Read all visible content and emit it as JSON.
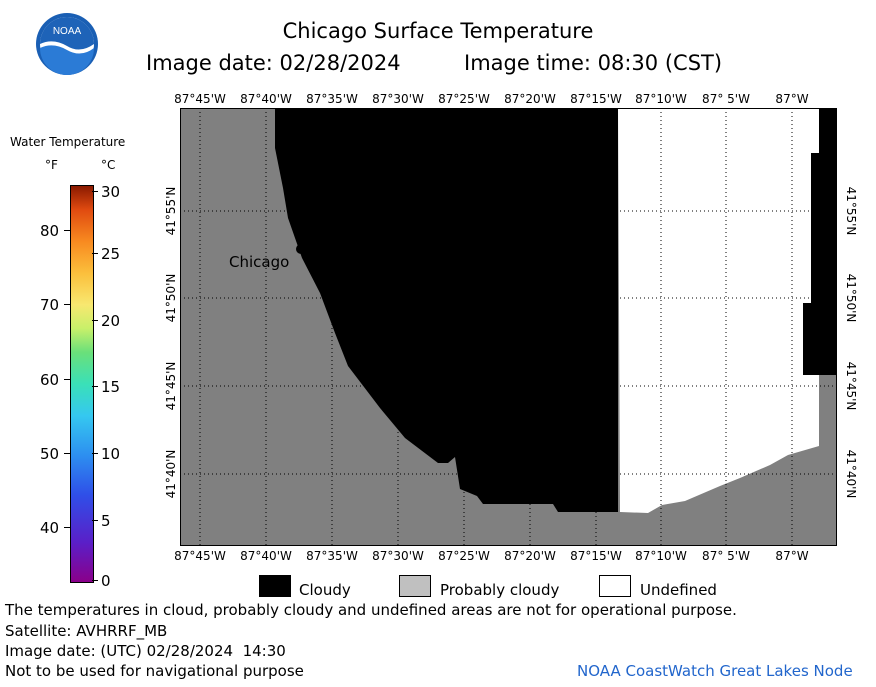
{
  "header": {
    "logo_text": "NOAA",
    "title": "Chicago Surface Temperature",
    "image_date": "Image date: 02/28/2024",
    "image_time": "Image time: 08:30 (CST)"
  },
  "colorbar": {
    "title": "Water Temperature",
    "unit_f": "°F",
    "unit_c": "°C",
    "f_ticks": [
      "80",
      "70",
      "60",
      "50",
      "40"
    ],
    "c_ticks": [
      "30",
      "25",
      "20",
      "15",
      "10",
      "5",
      "0"
    ]
  },
  "map": {
    "lon_labels": [
      "87°45'W",
      "87°40'W",
      "87°35'W",
      "87°30'W",
      "87°25'W",
      "87°20'W",
      "87°15'W",
      "87°10'W",
      "87° 5'W",
      "87°W"
    ],
    "lat_labels": [
      "41°55'N",
      "41°50'N",
      "41°45'N",
      "41°40'N"
    ],
    "city_label": "Chicago",
    "colors": {
      "land": "#808080",
      "cloudy": "#000000",
      "undefined": "#ffffff",
      "grid": "#000000"
    }
  },
  "legend": {
    "cloudy": "Cloudy",
    "probably_cloudy": "Probably cloudy",
    "undefined": "Undefined",
    "colors": {
      "cloudy": "#000000",
      "probably_cloudy": "#c0c0c0",
      "undefined": "#ffffff"
    }
  },
  "footer": {
    "disclaimer": "The temperatures in cloud, probably cloudy and undefined areas are not for operational purpose.",
    "satellite": "Satellite: AVHRRF_MB",
    "utc_date": "Image date: (UTC) 02/28/2024  14:30",
    "navigation": "Not to be used for navigational purpose",
    "credit": "NOAA CoastWatch Great Lakes Node"
  }
}
